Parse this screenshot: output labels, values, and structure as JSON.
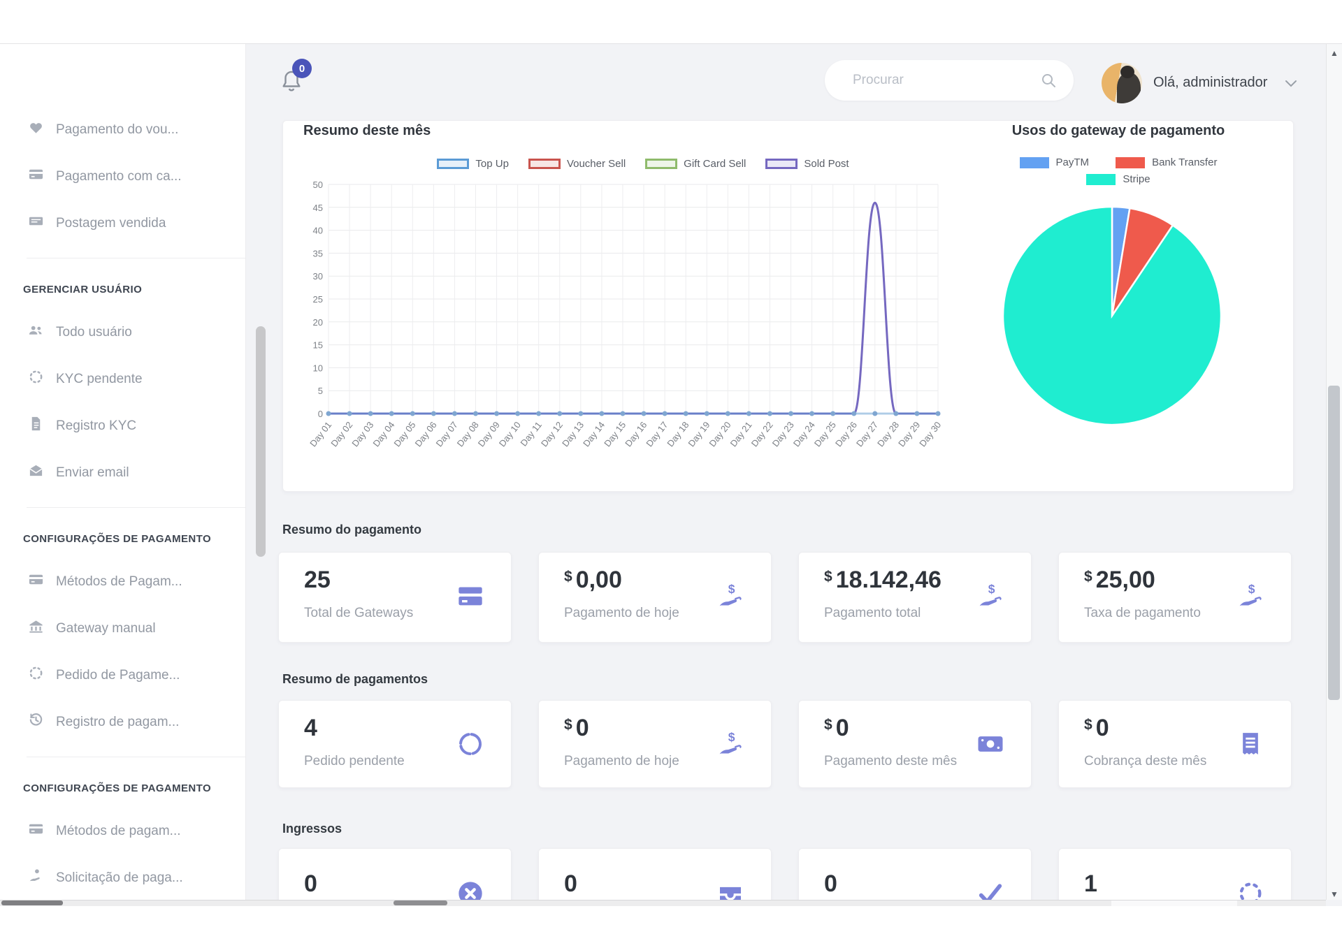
{
  "topbar": {
    "notification_badge": "0",
    "search_placeholder": "Procurar",
    "greeting": "Olá, administrador"
  },
  "sidebar": {
    "groups": [
      {
        "header": null,
        "items": [
          {
            "icon": "heart-icon",
            "label": "Pagamento do vou..."
          },
          {
            "icon": "credit-card-icon",
            "label": "Pagamento com ca..."
          },
          {
            "icon": "cash-card-icon",
            "label": "Postagem vendida"
          }
        ]
      },
      {
        "header": "GERENCIAR USUÁRIO",
        "items": [
          {
            "icon": "users-icon",
            "label": "Todo usuário"
          },
          {
            "icon": "loader-icon",
            "label": "KYC pendente"
          },
          {
            "icon": "file-text-icon",
            "label": "Registro KYC"
          },
          {
            "icon": "mail-icon",
            "label": "Enviar email"
          }
        ]
      },
      {
        "header": "CONFIGURAÇÕES DE PAGAMENTO",
        "items": [
          {
            "icon": "credit-card-icon",
            "label": "Métodos de Pagam..."
          },
          {
            "icon": "bank-icon",
            "label": "Gateway manual"
          },
          {
            "icon": "loader-icon",
            "label": "Pedido de Pagame..."
          },
          {
            "icon": "history-icon",
            "label": "Registro de pagam..."
          }
        ]
      },
      {
        "header": "CONFIGURAÇÕES DE PAGAMENTO",
        "items": [
          {
            "icon": "credit-card-icon",
            "label": "Métodos de pagam..."
          },
          {
            "icon": "hand-coin-icon",
            "label": "Solicitação de paga..."
          }
        ]
      }
    ]
  },
  "chart_data": [
    {
      "type": "line",
      "title": "Resumo deste mês",
      "x": [
        "Day 01",
        "Day 02",
        "Day 03",
        "Day 04",
        "Day 05",
        "Day 06",
        "Day 07",
        "Day 08",
        "Day 09",
        "Day 10",
        "Day 11",
        "Day 12",
        "Day 13",
        "Day 14",
        "Day 15",
        "Day 16",
        "Day 17",
        "Day 18",
        "Day 19",
        "Day 20",
        "Day 21",
        "Day 22",
        "Day 23",
        "Day 24",
        "Day 25",
        "Day 26",
        "Day 27",
        "Day 28",
        "Day 29",
        "Day 30"
      ],
      "series": [
        {
          "name": "Top Up",
          "color": "#5b9bd5",
          "values": [
            0,
            0,
            0,
            0,
            0,
            0,
            0,
            0,
            0,
            0,
            0,
            0,
            0,
            0,
            0,
            0,
            0,
            0,
            0,
            0,
            0,
            0,
            0,
            0,
            0,
            0,
            0,
            0,
            0,
            0
          ]
        },
        {
          "name": "Voucher Sell",
          "color": "#c9544e",
          "values": [
            0,
            0,
            0,
            0,
            0,
            0,
            0,
            0,
            0,
            0,
            0,
            0,
            0,
            0,
            0,
            0,
            0,
            0,
            0,
            0,
            0,
            0,
            0,
            0,
            0,
            0,
            0,
            0,
            0,
            0
          ]
        },
        {
          "name": "Gift Card Sell",
          "color": "#8fbb6c",
          "values": [
            0,
            0,
            0,
            0,
            0,
            0,
            0,
            0,
            0,
            0,
            0,
            0,
            0,
            0,
            0,
            0,
            0,
            0,
            0,
            0,
            0,
            0,
            0,
            0,
            0,
            0,
            0,
            0,
            0,
            0
          ]
        },
        {
          "name": "Sold Post",
          "color": "#7568c0",
          "values": [
            0,
            0,
            0,
            0,
            0,
            0,
            0,
            0,
            0,
            0,
            0,
            0,
            0,
            0,
            0,
            0,
            0,
            0,
            0,
            0,
            0,
            0,
            0,
            0,
            0,
            0,
            46,
            0,
            0,
            0
          ]
        }
      ],
      "ylim": [
        0,
        50
      ],
      "ytick_step": 5,
      "grid": true,
      "legend_position": "top"
    },
    {
      "type": "pie",
      "title": "Usos do gateway de pagamento",
      "labels": [
        "PayTM",
        "Bank Transfer",
        "Stripe"
      ],
      "values": [
        2.6,
        6.8,
        90.6
      ],
      "colors": [
        "#63a1f2",
        "#ef5a4c",
        "#1fedd0"
      ],
      "legend_position": "top"
    }
  ],
  "sections": [
    {
      "title": "Resumo do pagamento",
      "cards": [
        {
          "currency": "",
          "value": "25",
          "label": "Total de Gateways",
          "icon": "card-two-icon"
        },
        {
          "currency": "$",
          "value": "0,00",
          "label": "Pagamento de hoje",
          "icon": "hand-dollar-icon"
        },
        {
          "currency": "$",
          "value": "18.142,46",
          "label": "Pagamento total",
          "icon": "hand-dollar-icon"
        },
        {
          "currency": "$",
          "value": "25,00",
          "label": "Taxa de pagamento",
          "icon": "hand-dollar-icon"
        }
      ]
    },
    {
      "title": "Resumo de pagamentos",
      "cards": [
        {
          "currency": "",
          "value": "4",
          "label": "Pedido pendente",
          "icon": "ring-icon"
        },
        {
          "currency": "$",
          "value": "0",
          "label": "Pagamento de hoje",
          "icon": "hand-dollar-icon"
        },
        {
          "currency": "$",
          "value": "0",
          "label": "Pagamento deste mês",
          "icon": "banknote-icon"
        },
        {
          "currency": "$",
          "value": "0",
          "label": "Cobrança deste mês",
          "icon": "receipt-icon"
        }
      ]
    },
    {
      "title": "Ingressos",
      "cards": [
        {
          "currency": "",
          "value": "0",
          "label": "",
          "icon": "x-circle-icon"
        },
        {
          "currency": "",
          "value": "0",
          "label": "",
          "icon": "inbox-icon"
        },
        {
          "currency": "",
          "value": "0",
          "label": "",
          "icon": "check-icon"
        },
        {
          "currency": "",
          "value": "1",
          "label": "",
          "icon": "loader-icon"
        }
      ]
    }
  ],
  "colors": {
    "accent_indigo": "#7b83d9",
    "badge_indigo": "#4a54b9",
    "main_bg": "#f2f3f6"
  }
}
